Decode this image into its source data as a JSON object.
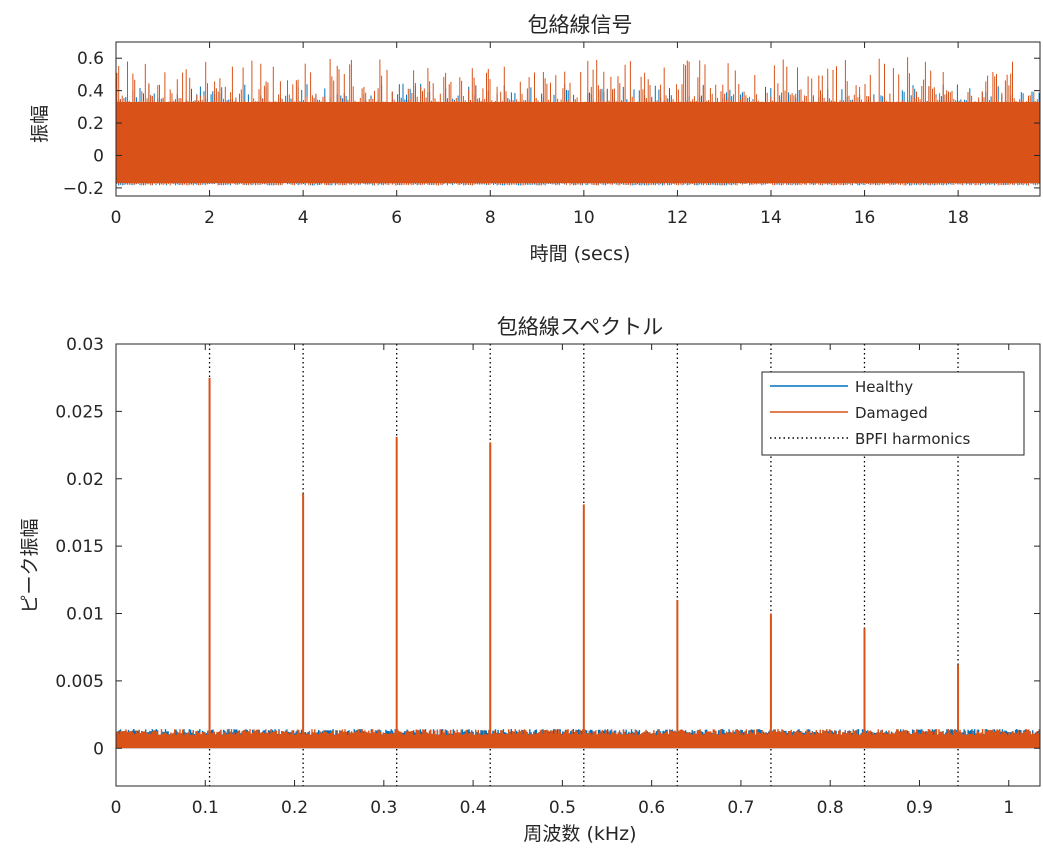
{
  "colors": {
    "healthy": "#0072BD",
    "damaged": "#D95319",
    "harmonics": "#000000",
    "axis": "#262626"
  },
  "chart_data": [
    {
      "type": "line",
      "title": "包絡線信号",
      "xlabel": "時間 (secs)",
      "ylabel": "振幅",
      "xlim": [
        0,
        19.75
      ],
      "ylim": [
        -0.25,
        0.7
      ],
      "xticks": [
        0,
        2,
        4,
        6,
        8,
        10,
        12,
        14,
        16,
        18
      ],
      "yticks": [
        -0.2,
        0,
        0.2,
        0.4,
        0.6
      ],
      "xtick_labels": [
        "0",
        "2",
        "4",
        "6",
        "8",
        "10",
        "12",
        "14",
        "16",
        "18"
      ],
      "ytick_labels": [
        "−0.2",
        "0",
        "0.2",
        "0.4",
        "0.6"
      ],
      "grid": false,
      "series": [
        {
          "name": "Healthy",
          "band": [
            -0.17,
            0.3
          ],
          "peak_max": 0.45
        },
        {
          "name": "Damaged",
          "band": [
            -0.17,
            0.33
          ],
          "peak_max": 0.61
        }
      ]
    },
    {
      "type": "line",
      "title": "包絡線スペクトル",
      "xlabel": "周波数 (kHz)",
      "ylabel": "ピーク振幅",
      "xlim": [
        0,
        1.035
      ],
      "ylim": [
        -0.0028,
        0.03
      ],
      "xticks": [
        0,
        0.1,
        0.2,
        0.3,
        0.4,
        0.5,
        0.6,
        0.7,
        0.8,
        0.9,
        1
      ],
      "yticks": [
        0,
        0.005,
        0.01,
        0.015,
        0.02,
        0.025,
        0.03
      ],
      "xtick_labels": [
        "0",
        "0.1",
        "0.2",
        "0.3",
        "0.4",
        "0.5",
        "0.6",
        "0.7",
        "0.8",
        "0.9",
        "1"
      ],
      "ytick_labels": [
        "0",
        "0.005",
        "0.01",
        "0.015",
        "0.02",
        "0.025",
        "0.03"
      ],
      "grid": false,
      "legend_position": "top-right",
      "noise_floor": [
        0,
        0.0013
      ],
      "series": [
        {
          "name": "Healthy",
          "peaks": []
        },
        {
          "name": "Damaged",
          "peaks": [
            {
              "x": 0.1048,
              "y": 0.0275
            },
            {
              "x": 0.2096,
              "y": 0.0189
            },
            {
              "x": 0.3144,
              "y": 0.0231
            },
            {
              "x": 0.4192,
              "y": 0.0227
            },
            {
              "x": 0.524,
              "y": 0.0181
            },
            {
              "x": 0.6288,
              "y": 0.011
            },
            {
              "x": 0.7336,
              "y": 0.01
            },
            {
              "x": 0.8384,
              "y": 0.0089
            },
            {
              "x": 0.9432,
              "y": 0.0062
            }
          ]
        },
        {
          "name": "BPFI harmonics",
          "style": "dotted",
          "x": [
            0.1048,
            0.2096,
            0.3144,
            0.4192,
            0.524,
            0.6288,
            0.7336,
            0.8384,
            0.9432
          ]
        }
      ]
    }
  ]
}
